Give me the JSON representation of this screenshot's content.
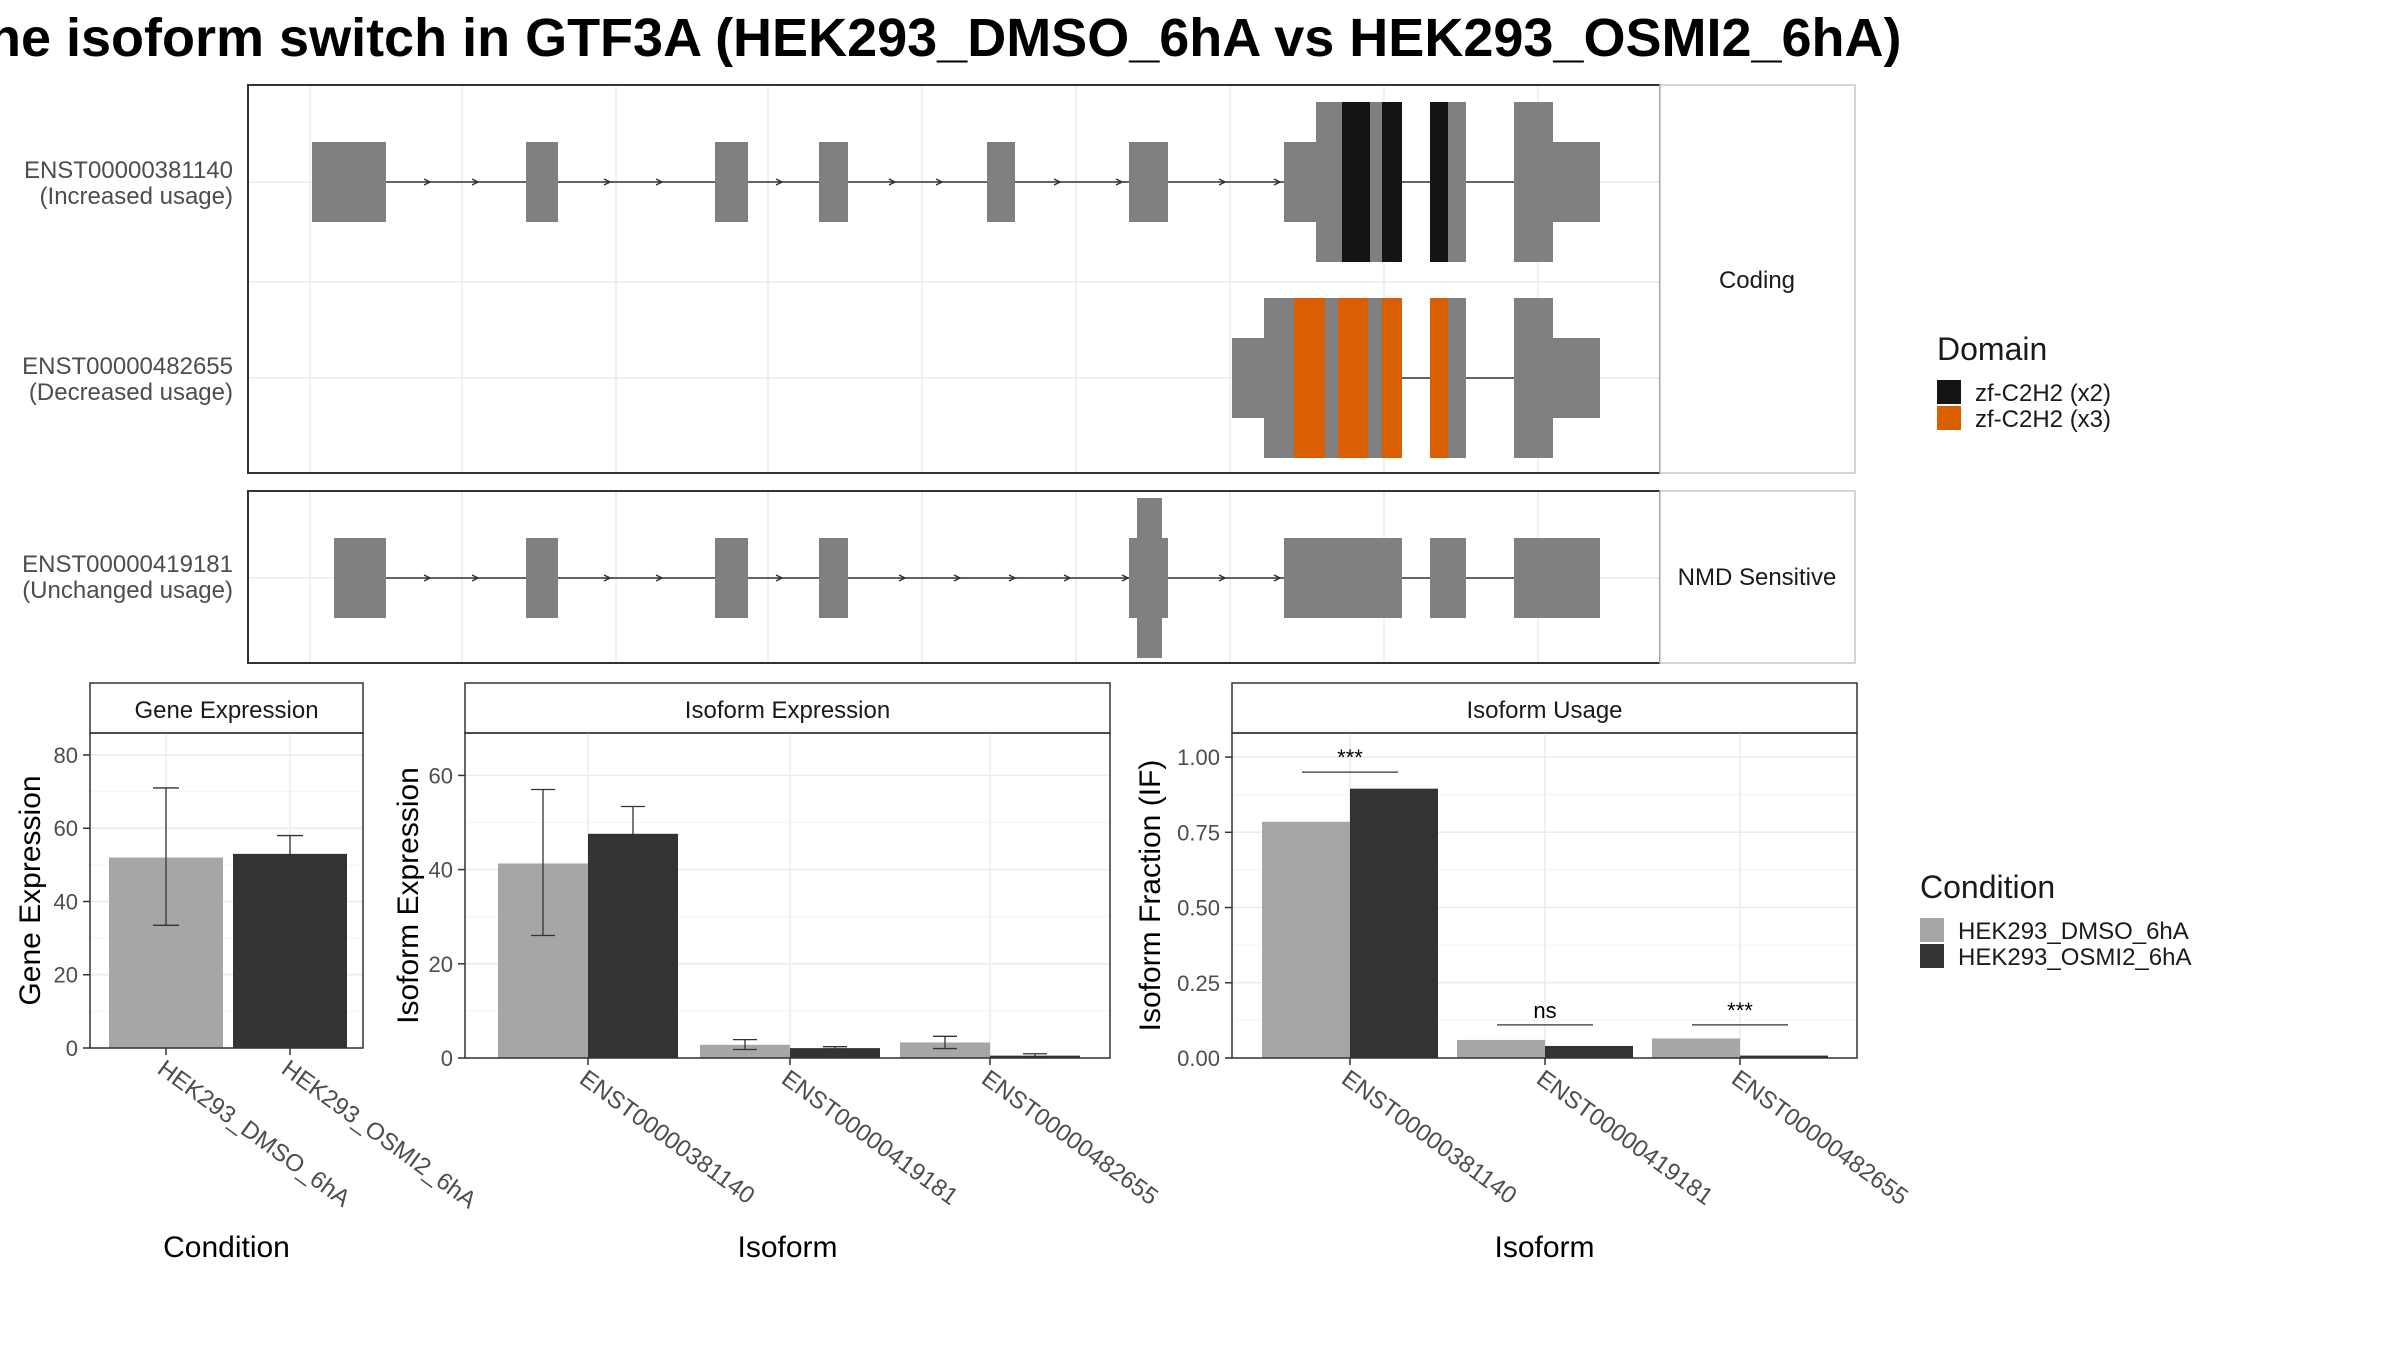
{
  "title": "ne isoform switch in GTF3A (HEK293_DMSO_6hA vs HEK293_OSMI2_6hA)",
  "colors": {
    "exon": "#808080",
    "domain1": "#141414",
    "domain2": "#D95F02",
    "dmso": "#A6A6A6",
    "osmi": "#333333",
    "grid": "#EBEBEB",
    "border": "#333333"
  },
  "transcripts": {
    "panels": [
      {
        "label": "Coding",
        "tracks": [
          {
            "name": "ENST00000381140",
            "usage": "(Increased usage)"
          },
          {
            "name": "ENST00000482655",
            "usage": "(Decreased usage)"
          }
        ]
      },
      {
        "label": "NMD Sensitive",
        "tracks": [
          {
            "name": "ENST00000419181",
            "usage": "(Unchanged usage)"
          }
        ]
      }
    ],
    "domain_legend": {
      "title": "Domain",
      "items": [
        {
          "label": "zf-C2H2 (x2)",
          "color": "#141414"
        },
        {
          "label": "zf-C2H2 (x3)",
          "color": "#D95F02"
        }
      ]
    }
  },
  "condition_legend": {
    "title": "Condition",
    "items": [
      {
        "label": "HEK293_DMSO_6hA",
        "color": "#A6A6A6"
      },
      {
        "label": "HEK293_OSMI2_6hA",
        "color": "#333333"
      }
    ]
  },
  "chart_data": [
    {
      "type": "bar",
      "strip": "Gene Expression",
      "xlabel": "Condition",
      "ylabel": "Gene Expression",
      "ylim": [
        0,
        86
      ],
      "yticks": [
        "0",
        "20",
        "40",
        "60",
        "80"
      ],
      "ytick_values": [
        0,
        20,
        40,
        60,
        80
      ],
      "categories": [
        "HEK293_DMSO_6hA",
        "HEK293_OSMI2_6hA"
      ],
      "values": [
        52,
        53
      ],
      "errors": [
        [
          33.5,
          71
        ],
        [
          48.5,
          58
        ]
      ]
    },
    {
      "type": "bar",
      "strip": "Isoform Expression",
      "xlabel": "Isoform",
      "ylabel": "Isoform Expression",
      "ylim": [
        0,
        69
      ],
      "yticks": [
        "0",
        "20",
        "40",
        "60"
      ],
      "ytick_values": [
        0,
        20,
        40,
        60
      ],
      "categories": [
        "ENST00000381140",
        "ENST00000419181",
        "ENST00000482655"
      ],
      "series": [
        {
          "name": "HEK293_DMSO_6hA",
          "values": [
            41.3,
            2.8,
            3.3
          ],
          "errors": [
            [
              26,
              57
            ],
            [
              1.8,
              3.9
            ],
            [
              2,
              4.6
            ]
          ]
        },
        {
          "name": "HEK293_OSMI2_6hA",
          "values": [
            47.6,
            2.1,
            0.5
          ],
          "errors": [
            [
              42.2,
              53.4
            ],
            [
              1.8,
              2.4
            ],
            [
              0.2,
              0.9
            ]
          ]
        }
      ]
    },
    {
      "type": "bar",
      "strip": "Isoform Usage",
      "xlabel": "Isoform",
      "ylabel": "Isoform Fraction (IF)",
      "ylim": [
        0,
        1.08
      ],
      "yticks": [
        "0.00",
        "0.25",
        "0.50",
        "0.75",
        "1.00"
      ],
      "ytick_values": [
        0,
        0.25,
        0.5,
        0.75,
        1.0
      ],
      "categories": [
        "ENST00000381140",
        "ENST00000419181",
        "ENST00000482655"
      ],
      "series": [
        {
          "name": "HEK293_DMSO_6hA",
          "values": [
            0.785,
            0.06,
            0.065
          ]
        },
        {
          "name": "HEK293_OSMI2_6hA",
          "values": [
            0.895,
            0.04,
            0.008
          ]
        }
      ],
      "significance": [
        "***",
        "ns",
        "***"
      ],
      "significance_y": [
        0.95,
        0.11,
        0.11
      ]
    }
  ]
}
